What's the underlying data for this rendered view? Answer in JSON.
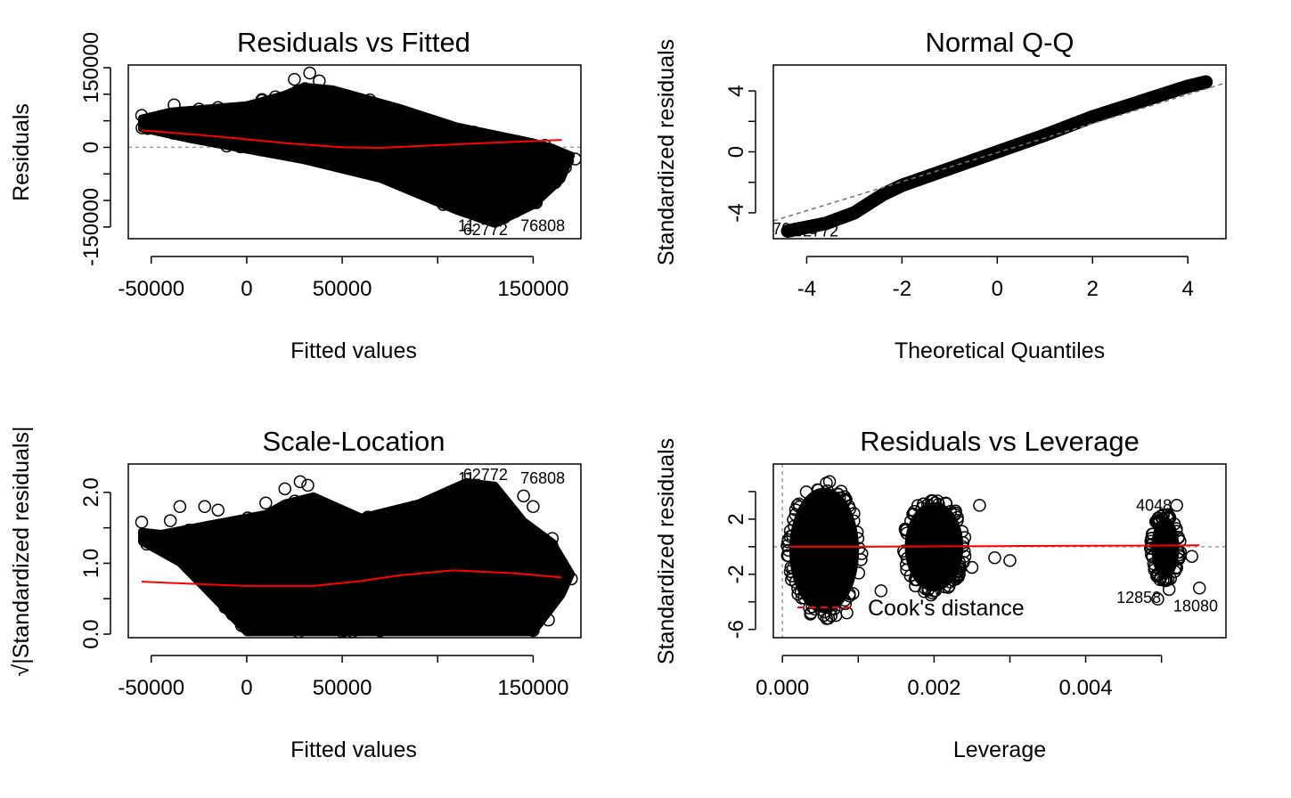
{
  "chart_data": [
    {
      "type": "scatter",
      "title": "Residuals vs Fitted",
      "xlabel": "Fitted values",
      "ylabel": "Residuals",
      "xlim": [
        -62000,
        175000
      ],
      "ylim": [
        -172000,
        155000
      ],
      "xticks": [
        -50000,
        0,
        50000,
        150000
      ],
      "xtick_labels": [
        "-50000",
        "0",
        "50000",
        "150000"
      ],
      "xtick_marks": [
        -50000,
        0,
        50000,
        100000,
        150000
      ],
      "yticks": [
        -150000,
        0,
        150000
      ],
      "ytick_labels": [
        "-150000",
        "0",
        "150000"
      ],
      "ytick_marks": [
        -150000,
        -100000,
        -50000,
        0,
        50000,
        100000,
        150000
      ],
      "reference_line_y": 0,
      "smoother": {
        "color": "#ff0000",
        "x": [
          -55000,
          -20000,
          20000,
          50000,
          70000,
          100000,
          130000,
          165000
        ],
        "y": [
          32000,
          22000,
          8000,
          0,
          -1000,
          4000,
          9000,
          14000
        ]
      },
      "cloud": [
        [
          -55000,
          55000
        ],
        [
          -40000,
          68000
        ],
        [
          0,
          80000
        ],
        [
          20000,
          100000
        ],
        [
          30000,
          115000
        ],
        [
          45000,
          110000
        ],
        [
          80000,
          75000
        ],
        [
          110000,
          40000
        ],
        [
          150000,
          10000
        ],
        [
          160000,
          0
        ],
        [
          170000,
          -15000
        ],
        [
          165000,
          -60000
        ],
        [
          150000,
          -110000
        ],
        [
          130000,
          -145000
        ],
        [
          110000,
          -120000
        ],
        [
          70000,
          -60000
        ],
        [
          30000,
          -25000
        ],
        [
          0,
          -5000
        ],
        [
          -30000,
          15000
        ],
        [
          -55000,
          35000
        ]
      ],
      "outlier_points": [
        [
          -55000,
          60000
        ],
        [
          -38000,
          80000
        ],
        [
          -25000,
          72000
        ],
        [
          -15000,
          75000
        ],
        [
          8000,
          90000
        ],
        [
          15000,
          95000
        ],
        [
          25000,
          128000
        ],
        [
          33000,
          140000
        ],
        [
          38000,
          125000
        ],
        [
          125000,
          -125000
        ],
        [
          135000,
          -132000
        ],
        [
          140000,
          -118000
        ],
        [
          150000,
          -90000
        ],
        [
          160000,
          -55000
        ],
        [
          168000,
          -25000
        ],
        [
          172000,
          -22000
        ]
      ],
      "point_labels": [
        {
          "text": "11",
          "x": 115000,
          "y": -148000
        },
        {
          "text": "62772",
          "x": 125000,
          "y": -155000
        },
        {
          "text": "76808",
          "x": 155000,
          "y": -148000
        }
      ]
    },
    {
      "type": "scatter",
      "title": "Normal Q-Q",
      "xlabel": "Theoretical Quantiles",
      "ylabel": "Standardized residuals",
      "xlim": [
        -4.7,
        4.8
      ],
      "ylim": [
        -5.7,
        5.7
      ],
      "xticks": [
        -4,
        -2,
        0,
        2,
        4
      ],
      "xtick_labels": [
        "-4",
        "-2",
        "0",
        "2",
        "4"
      ],
      "yticks": [
        -4,
        0,
        4
      ],
      "ytick_labels": [
        "-4",
        "0",
        "4"
      ],
      "ytick_marks": [
        -4,
        -2,
        0,
        2,
        4
      ],
      "reference_line": {
        "x": [
          -4.7,
          4.8
        ],
        "y": [
          -4.53,
          4.53
        ]
      },
      "qq_curve": {
        "x": [
          -4.4,
          -4.0,
          -3.6,
          -3.0,
          -2.4,
          -2.0,
          -1.0,
          0.0,
          1.0,
          2.0,
          3.0,
          3.6,
          4.0,
          4.4
        ],
        "y": [
          -5.2,
          -4.95,
          -4.7,
          -4.0,
          -2.8,
          -2.2,
          -1.1,
          0.0,
          1.1,
          2.3,
          3.3,
          3.9,
          4.3,
          4.6
        ]
      },
      "point_labels": [
        {
          "text": "76808",
          "x": -4.25,
          "y": -5.05
        },
        {
          "text": "62772",
          "x": -3.8,
          "y": -5.2
        }
      ]
    },
    {
      "type": "scatter",
      "title": "Scale-Location",
      "xlabel": "Fitted values",
      "ylabel": "√|Standardized residuals|",
      "xlim": [
        -62000,
        175000
      ],
      "ylim": [
        -0.05,
        2.4
      ],
      "xticks": [
        -50000,
        0,
        50000,
        150000
      ],
      "xtick_labels": [
        "-50000",
        "0",
        "50000",
        "150000"
      ],
      "xtick_marks": [
        -50000,
        0,
        50000,
        100000,
        150000
      ],
      "yticks": [
        0.0,
        1.0,
        2.0
      ],
      "ytick_labels": [
        "0.0",
        "1.0",
        "2.0"
      ],
      "ytick_marks": [
        0.0,
        0.5,
        1.0,
        1.5,
        2.0
      ],
      "smoother": {
        "color": "#ff0000",
        "x": [
          -55000,
          -20000,
          0,
          35000,
          60000,
          80000,
          108000,
          140000,
          165000
        ],
        "y": [
          0.74,
          0.7,
          0.68,
          0.68,
          0.75,
          0.83,
          0.9,
          0.86,
          0.8
        ]
      },
      "cloud": [
        [
          -55000,
          1.45
        ],
        [
          -45000,
          1.42
        ],
        [
          -20000,
          1.55
        ],
        [
          10000,
          1.7
        ],
        [
          20000,
          1.85
        ],
        [
          35000,
          1.95
        ],
        [
          60000,
          1.65
        ],
        [
          90000,
          1.85
        ],
        [
          115000,
          2.15
        ],
        [
          130000,
          2.1
        ],
        [
          145000,
          1.6
        ],
        [
          160000,
          1.3
        ],
        [
          170000,
          0.85
        ],
        [
          165000,
          0.55
        ],
        [
          150000,
          0.02
        ],
        [
          120000,
          0.02
        ],
        [
          60000,
          0.02
        ],
        [
          0,
          0.02
        ],
        [
          -15000,
          0.45
        ],
        [
          -35000,
          1.0
        ],
        [
          -55000,
          1.3
        ]
      ],
      "outlier_points": [
        [
          -55000,
          1.58
        ],
        [
          -40000,
          1.6
        ],
        [
          -35000,
          1.8
        ],
        [
          -22000,
          1.8
        ],
        [
          -15000,
          1.75
        ],
        [
          10000,
          1.85
        ],
        [
          20000,
          2.05
        ],
        [
          28000,
          2.15
        ],
        [
          32000,
          2.1
        ],
        [
          145000,
          1.95
        ],
        [
          150000,
          1.8
        ],
        [
          160000,
          1.35
        ],
        [
          165000,
          1.0
        ],
        [
          170000,
          0.78
        ],
        [
          150000,
          0.05
        ],
        [
          158000,
          0.2
        ]
      ],
      "point_labels": [
        {
          "text": "11",
          "x": 115000,
          "y": 2.2
        },
        {
          "text": "62772",
          "x": 125000,
          "y": 2.25
        },
        {
          "text": "76808",
          "x": 155000,
          "y": 2.2
        }
      ]
    },
    {
      "type": "scatter",
      "title": "Residuals vs Leverage",
      "xlabel": "Leverage",
      "ylabel": "Standardized residuals",
      "xlim": [
        -0.00012,
        0.00585
      ],
      "ylim": [
        -6.6,
        6.0
      ],
      "xticks": [
        0.0,
        0.002,
        0.004
      ],
      "xtick_labels": [
        "0.000",
        "0.002",
        "0.004"
      ],
      "xtick_marks": [
        0.0,
        0.001,
        0.002,
        0.003,
        0.004,
        0.005
      ],
      "yticks": [
        -6,
        -2,
        2
      ],
      "ytick_labels": [
        "-6",
        "-2",
        "2"
      ],
      "ytick_marks": [
        -6,
        -4,
        -2,
        0,
        2,
        4
      ],
      "reference_line_y": 0,
      "reference_line_x": 0,
      "smoother": {
        "color": "#ff0000",
        "x": [
          0.0001,
          0.001,
          0.002,
          0.003,
          0.004,
          0.0055
        ],
        "y": [
          0.0,
          0.0,
          0.02,
          0.05,
          0.07,
          0.1
        ]
      },
      "clusters": [
        {
          "cx": 0.00055,
          "rx": 0.0005,
          "ytop": 4.8,
          "ybot": -5.3
        },
        {
          "cx": 0.002,
          "rx": 0.00042,
          "ytop": 3.6,
          "ybot": -3.6
        },
        {
          "cx": 0.00505,
          "rx": 0.0002,
          "ytop": 2.4,
          "ybot": -2.6
        }
      ],
      "outlier_points": [
        [
          0.0025,
          -1.5
        ],
        [
          0.0028,
          -0.8
        ],
        [
          0.003,
          -1.0
        ],
        [
          0.0026,
          3.0
        ],
        [
          0.0052,
          3.0
        ],
        [
          0.0055,
          -3.0
        ],
        [
          0.00495,
          -3.8
        ],
        [
          0.0051,
          -3.1
        ],
        [
          0.0054,
          -0.7
        ],
        [
          0.0052,
          -1.5
        ],
        [
          0.0013,
          -3.2
        ],
        [
          0.00085,
          -4.8
        ]
      ],
      "legend": {
        "label": "Cook's distance",
        "position": "bottom-left"
      },
      "point_labels": [
        {
          "text": "4048",
          "x": 0.0049,
          "y": 3.0
        },
        {
          "text": "12858",
          "x": 0.0047,
          "y": -3.7
        },
        {
          "text": "18080",
          "x": 0.00545,
          "y": -4.3
        }
      ]
    }
  ]
}
